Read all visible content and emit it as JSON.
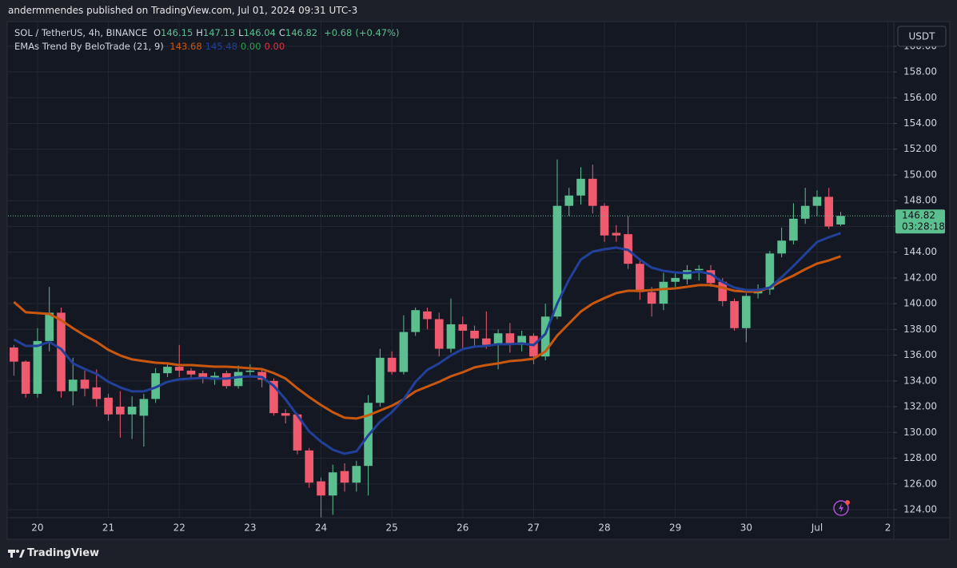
{
  "header": {
    "text": "andermmendes published on TradingView.com, Jul 01, 2024 09:31 UTC-3"
  },
  "footer": {
    "brand": "TradingView"
  },
  "chart_data": {
    "type": "candlestick",
    "symbol": "SOL / TetherUS, 4h, BINANCE",
    "ohlc_labels": [
      "O",
      "H",
      "L",
      "C"
    ],
    "change": "+0.68",
    "change_pct": "(+0.47%)",
    "indicator": "EMAs Trend By BeloTrade (21, 9)",
    "indicator_extra": [
      {
        "text": "0.00",
        "color": "#2e9e4a"
      },
      {
        "text": "0.00",
        "color": "#e0313f"
      }
    ],
    "currency": "USDT",
    "countdown": "03:28:18",
    "up_color": "#5cbf8f",
    "down_color": "#ef5a6f",
    "categories": [
      null,
      null,
      "20",
      null,
      null,
      null,
      null,
      null,
      "21",
      null,
      null,
      null,
      null,
      null,
      "22",
      null,
      null,
      null,
      null,
      null,
      "23",
      null,
      null,
      null,
      null,
      null,
      "24",
      null,
      null,
      null,
      null,
      null,
      "25",
      null,
      null,
      null,
      null,
      null,
      "26",
      null,
      null,
      null,
      null,
      null,
      "27",
      null,
      null,
      null,
      null,
      null,
      "28",
      null,
      null,
      null,
      null,
      null,
      "29",
      null,
      null,
      null,
      null,
      null,
      "30",
      null,
      null,
      null,
      null,
      null,
      "Jul",
      null,
      null,
      null,
      null,
      null,
      "2"
    ],
    "open": [
      136.6,
      135.5,
      133.0,
      137.1,
      139.3,
      133.2,
      134.1,
      133.5,
      132.7,
      132.0,
      131.4,
      131.3,
      132.6,
      134.6,
      135.1,
      134.8,
      134.6,
      134.1,
      134.6,
      133.6,
      134.7,
      134.7,
      134.0,
      131.5,
      131.4,
      128.6,
      126.2,
      125.1,
      127.0,
      126.1,
      127.4,
      132.3,
      135.8,
      134.7,
      137.8,
      139.4,
      138.8,
      136.5,
      138.4,
      137.9,
      137.3,
      136.8,
      137.7,
      136.8,
      137.5,
      135.9,
      139.0,
      147.6,
      148.4,
      149.7,
      147.6,
      145.5,
      145.4,
      143.1,
      140.9,
      140.0,
      141.7,
      141.9,
      142.6,
      142.6,
      141.7,
      140.2,
      138.1,
      140.8,
      141.1,
      143.9,
      144.9,
      146.6,
      147.6,
      148.3,
      146.15,
      null,
      null,
      null,
      null
    ],
    "high": [
      136.8,
      135.6,
      138.1,
      141.3,
      139.7,
      135.8,
      134.8,
      134.9,
      133.0,
      133.2,
      132.8,
      133.0,
      135.0,
      135.3,
      136.8,
      135.0,
      134.8,
      134.7,
      134.8,
      135.2,
      135.3,
      135.0,
      134.2,
      131.8,
      131.5,
      128.8,
      126.5,
      127.5,
      127.6,
      127.8,
      132.9,
      136.5,
      136.3,
      139.1,
      139.7,
      139.7,
      139.3,
      140.4,
      139.0,
      138.3,
      139.4,
      138.0,
      138.5,
      137.9,
      137.7,
      140.0,
      151.2,
      149.0,
      150.6,
      150.8,
      147.8,
      146.1,
      146.8,
      143.5,
      141.3,
      142.4,
      142.5,
      143.0,
      143.0,
      143.0,
      142.0,
      140.4,
      140.8,
      141.5,
      144.1,
      145.9,
      147.8,
      149.0,
      148.8,
      149.0,
      147.13,
      null,
      null,
      null,
      null
    ],
    "low": [
      134.4,
      132.7,
      132.7,
      136.3,
      132.7,
      132.1,
      132.8,
      132.0,
      130.9,
      129.6,
      129.5,
      128.9,
      132.3,
      134.3,
      134.3,
      134.2,
      133.8,
      133.7,
      133.4,
      133.4,
      134.3,
      133.5,
      131.3,
      130.7,
      128.3,
      125.7,
      123.4,
      123.6,
      125.4,
      125.4,
      125.1,
      132.0,
      134.5,
      134.5,
      137.5,
      138.0,
      135.9,
      136.2,
      136.5,
      136.6,
      136.5,
      134.9,
      136.2,
      136.3,
      135.3,
      135.6,
      138.8,
      146.8,
      147.7,
      147.0,
      144.8,
      144.8,
      142.7,
      140.3,
      139.0,
      139.5,
      141.3,
      141.5,
      141.8,
      141.3,
      139.8,
      137.9,
      137.0,
      140.4,
      140.7,
      143.6,
      144.6,
      146.2,
      146.8,
      145.8,
      146.04,
      null,
      null,
      null,
      null
    ],
    "close": [
      135.5,
      133.0,
      137.1,
      139.3,
      133.2,
      134.1,
      133.4,
      132.6,
      131.4,
      131.4,
      132.0,
      132.6,
      134.6,
      135.1,
      134.8,
      134.5,
      134.2,
      134.4,
      133.6,
      134.7,
      134.8,
      134.1,
      131.5,
      131.3,
      128.6,
      126.1,
      125.1,
      126.9,
      126.1,
      127.4,
      132.3,
      135.8,
      134.7,
      137.8,
      139.5,
      138.8,
      136.5,
      138.4,
      137.9,
      137.3,
      136.8,
      137.7,
      136.8,
      137.5,
      135.9,
      139.0,
      147.6,
      148.4,
      149.7,
      147.6,
      145.3,
      145.3,
      143.1,
      140.9,
      140.0,
      141.7,
      142.0,
      142.6,
      142.7,
      141.6,
      140.2,
      138.1,
      140.6,
      141.1,
      143.9,
      144.9,
      146.6,
      147.6,
      148.3,
      146.0,
      146.82,
      null,
      null,
      null,
      null
    ],
    "series": [
      {
        "color": "#c9580e",
        "values": [
          140.13,
          139.33,
          139.27,
          139.2,
          138.71,
          138.09,
          137.53,
          137.03,
          136.41,
          135.98,
          135.67,
          135.54,
          135.42,
          135.36,
          135.23,
          135.23,
          135.17,
          135.11,
          135.11,
          135.05,
          134.98,
          134.92,
          134.61,
          134.18,
          133.43,
          132.75,
          132.13,
          131.57,
          131.14,
          131.08,
          131.33,
          131.7,
          132.07,
          132.57,
          133.19,
          133.56,
          133.93,
          134.36,
          134.67,
          135.05,
          135.23,
          135.36,
          135.54,
          135.61,
          135.73,
          136.29,
          137.53,
          138.46,
          139.39,
          140.01,
          140.44,
          140.82,
          141.0,
          141.0,
          141.06,
          141.13,
          141.19,
          141.31,
          141.44,
          141.44,
          141.25,
          141.0,
          140.94,
          140.94,
          141.25,
          141.75,
          142.18,
          142.68,
          143.11,
          143.36,
          143.68,
          null,
          null,
          null,
          null
        ]
      },
      {
        "color": "#22409a",
        "values": [
          137.22,
          136.72,
          136.72,
          137.03,
          136.47,
          135.36,
          134.92,
          134.55,
          133.93,
          133.5,
          133.19,
          133.19,
          133.5,
          133.93,
          134.12,
          134.18,
          134.24,
          134.18,
          134.18,
          134.3,
          134.36,
          134.3,
          133.62,
          132.57,
          131.33,
          130.08,
          129.28,
          128.66,
          128.35,
          128.53,
          129.77,
          130.83,
          131.57,
          132.57,
          133.93,
          134.86,
          135.36,
          135.98,
          136.47,
          136.66,
          136.72,
          136.85,
          136.85,
          136.91,
          136.78,
          137.65,
          140.01,
          141.87,
          143.42,
          144.04,
          144.23,
          144.35,
          144.17,
          143.42,
          142.8,
          142.55,
          142.43,
          142.37,
          142.49,
          142.31,
          141.68,
          141.25,
          141.06,
          141.06,
          141.25,
          142.06,
          142.93,
          143.86,
          144.79,
          145.16,
          145.48,
          null,
          null,
          null,
          null
        ]
      }
    ],
    "ylim": [
      123.38,
      161.85
    ],
    "yticks": [
      {
        "value": 124,
        "label": "124.00"
      },
      {
        "value": 126,
        "label": "126.00"
      },
      {
        "value": 128,
        "label": "128.00"
      },
      {
        "value": 130,
        "label": "130.00"
      },
      {
        "value": 132,
        "label": "132.00"
      },
      {
        "value": 134,
        "label": "134.00"
      },
      {
        "value": 136,
        "label": "136.00"
      },
      {
        "value": 138,
        "label": "138.00"
      },
      {
        "value": 140,
        "label": "140.00"
      },
      {
        "value": 142,
        "label": "142.00"
      },
      {
        "value": 144,
        "label": "144.00"
      },
      {
        "value": 146,
        "label": "146.00"
      },
      {
        "value": 148,
        "label": "148.00"
      },
      {
        "value": 150,
        "label": "150.00"
      },
      {
        "value": 152,
        "label": "152.00"
      },
      {
        "value": 154,
        "label": "154.00"
      },
      {
        "value": 156,
        "label": "156.00"
      },
      {
        "value": 158,
        "label": "158.00"
      },
      {
        "value": 160,
        "label": "160.00"
      }
    ],
    "grid": true
  }
}
